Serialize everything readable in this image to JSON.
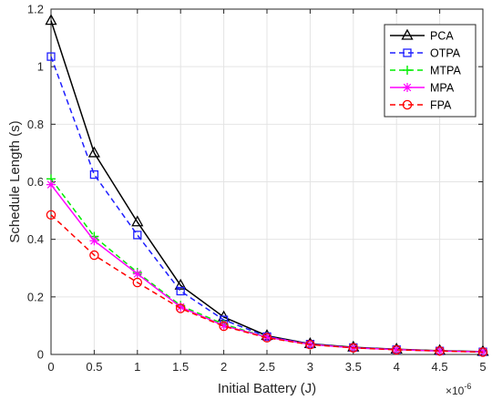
{
  "chart_data": {
    "type": "line",
    "xlabel": "Initial Battery (J)",
    "ylabel": "Schedule Length (s)",
    "x_exponent_label": "×10",
    "x_exponent_power": "-6",
    "x": [
      0,
      0.5,
      1,
      1.5,
      2,
      2.5,
      3,
      3.5,
      4,
      4.5,
      5
    ],
    "xlim": [
      0,
      5
    ],
    "ylim": [
      0,
      1.2
    ],
    "x_ticks": [
      "0",
      "0.5",
      "1",
      "1.5",
      "2",
      "2.5",
      "3",
      "3.5",
      "4",
      "4.5",
      "5"
    ],
    "y_ticks": [
      "0",
      "0.2",
      "0.4",
      "0.6",
      "0.8",
      "1",
      "1.2"
    ],
    "grid": true,
    "legend_position": "top-right",
    "series": [
      {
        "name": "PCA",
        "color": "#000000",
        "dash": "solid",
        "marker": "triangle",
        "values": [
          1.16,
          0.7,
          0.46,
          0.24,
          0.13,
          0.065,
          0.037,
          0.025,
          0.018,
          0.013,
          0.01
        ]
      },
      {
        "name": "OTPA",
        "color": "#1f1fff",
        "dash": "dashed",
        "marker": "square",
        "values": [
          1.035,
          0.625,
          0.415,
          0.22,
          0.12,
          0.062,
          0.036,
          0.024,
          0.017,
          0.012,
          0.009
        ]
      },
      {
        "name": "MTPA",
        "color": "#00ee00",
        "dash": "dashed",
        "marker": "plus",
        "values": [
          0.61,
          0.41,
          0.285,
          0.17,
          0.105,
          0.06,
          0.035,
          0.023,
          0.017,
          0.012,
          0.009
        ]
      },
      {
        "name": "MPA",
        "color": "#ff00ff",
        "dash": "solid",
        "marker": "star",
        "values": [
          0.59,
          0.395,
          0.28,
          0.165,
          0.1,
          0.06,
          0.035,
          0.023,
          0.017,
          0.012,
          0.009
        ]
      },
      {
        "name": "FPA",
        "color": "#ff0000",
        "dash": "dashed",
        "marker": "circle",
        "values": [
          0.485,
          0.345,
          0.25,
          0.16,
          0.098,
          0.058,
          0.034,
          0.023,
          0.016,
          0.012,
          0.008
        ]
      }
    ]
  }
}
